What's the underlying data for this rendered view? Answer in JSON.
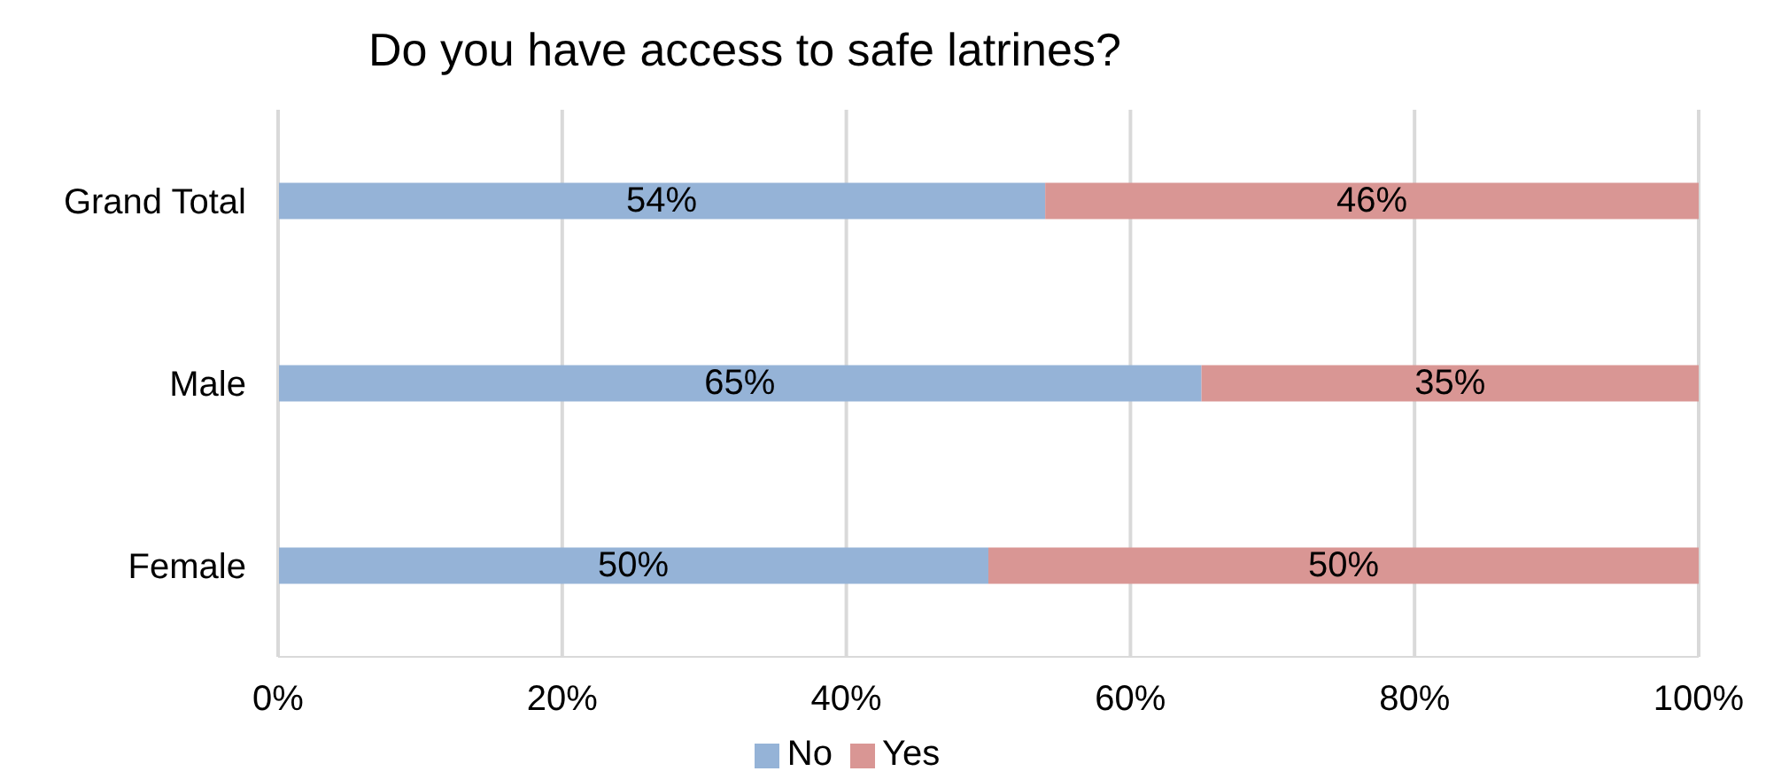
{
  "chart_data": {
    "type": "bar",
    "orientation": "horizontal",
    "stacked": true,
    "title": "Do you have access to safe latrines?",
    "categories": [
      "Grand Total",
      "Male",
      "Female"
    ],
    "series": [
      {
        "name": "No",
        "color": "#95b3d7",
        "values": [
          54,
          65,
          50
        ],
        "value_labels": [
          "54%",
          "65%",
          "50%"
        ]
      },
      {
        "name": "Yes",
        "color": "#d99694",
        "values": [
          46,
          35,
          50
        ],
        "value_labels": [
          "46%",
          "35%",
          "50%"
        ]
      }
    ],
    "xlim": [
      0,
      100
    ],
    "xticks": [
      {
        "value": 0,
        "label": "0%"
      },
      {
        "value": 20,
        "label": "20%"
      },
      {
        "value": 40,
        "label": "40%"
      },
      {
        "value": 60,
        "label": "60%"
      },
      {
        "value": 80,
        "label": "80%"
      },
      {
        "value": 100,
        "label": "100%"
      }
    ],
    "grid": "x",
    "legend": "bottom"
  }
}
